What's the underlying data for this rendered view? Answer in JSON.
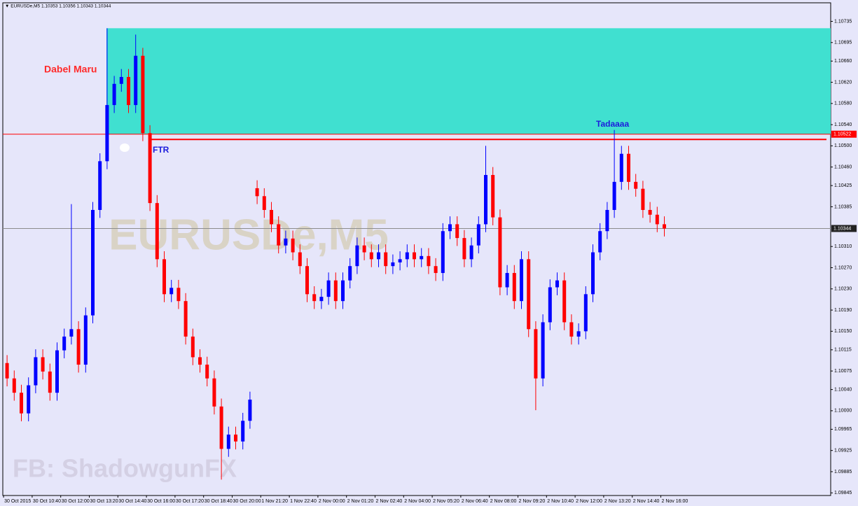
{
  "chart_data": {
    "type": "candlestick",
    "title": "▼ EURUSDe,M5  1.10353 1.10356 1.10343 1.10344",
    "watermark": "EURUSDe,M5",
    "credit": "FB: ShadowgunFX",
    "up_color": "#0000ff",
    "down_color": "#ff0000",
    "categories": [
      "30 Oct 2015",
      null,
      null,
      null,
      "30 Oct 10:40",
      null,
      null,
      null,
      "30 Oct 12:00",
      null,
      null,
      null,
      "30 Oct 13:20",
      null,
      null,
      null,
      "30 Oct 14:40",
      null,
      null,
      null,
      "30 Oct 16:00",
      null,
      null,
      null,
      "30 Oct 17:20",
      null,
      null,
      null,
      "30 Oct 18:40",
      null,
      null,
      null,
      "30 Oct 20:00",
      null,
      null,
      null,
      "1 Nov 21:20",
      null,
      null,
      null,
      "1 Nov 22:40",
      null,
      null,
      null,
      "2 Nov 00:00",
      null,
      null,
      null,
      "2 Nov 01:20",
      null,
      null,
      null,
      "2 Nov 02:40",
      null,
      null,
      null,
      "2 Nov 04:00",
      null,
      null,
      null,
      "2 Nov 05:20",
      null,
      null,
      null,
      "2 Nov 06:40",
      null,
      null,
      null,
      "2 Nov 08:00",
      null,
      null,
      null,
      "2 Nov 09:20",
      null,
      null,
      null,
      "2 Nov 10:40",
      null,
      null,
      null,
      "2 Nov 12:00",
      null,
      null,
      null,
      "2 Nov 13:20",
      null,
      null,
      null,
      "2 Nov 14:40",
      null,
      null,
      null,
      "2 Nov 16:00"
    ],
    "open": [
      1.1009,
      1.10061,
      1.10034,
      1.09995,
      1.10048,
      1.10101,
      1.10074,
      1.10034,
      1.10114,
      1.1014,
      1.10154,
      1.10087,
      1.1018,
      1.10379,
      1.10471,
      1.10577,
      1.10617,
      1.1063,
      1.10577,
      1.1067,
      1.10524,
      1.10392,
      1.10286,
      1.1022,
      1.10232,
      1.10207,
      1.1014,
      1.10101,
      1.10087,
      1.10061,
      1.10008,
      1.09928,
      1.09955,
      1.09942,
      1.09981,
      1.1042,
      1.10405,
      1.10379,
      1.10352,
      1.10312,
      1.10325,
      1.10299,
      1.10273,
      1.1022,
      1.10207,
      1.10215,
      1.10246,
      1.10207,
      1.10246,
      1.10273,
      1.10312,
      1.10299,
      1.10286,
      1.10299,
      1.10273,
      1.1028,
      1.10286,
      1.10299,
      1.10286,
      1.10292,
      1.10273,
      1.1026,
      1.10339,
      1.10352,
      1.10326,
      1.10286,
      1.10312,
      1.10352,
      1.10445,
      1.10365,
      1.10233,
      1.1026,
      1.10207,
      1.10286,
      1.10154,
      1.10061,
      1.10167,
      1.10233,
      1.10246,
      1.10167,
      1.1014,
      1.1015,
      1.1022,
      1.10299,
      1.10339,
      1.10379,
      1.10432,
      1.10485,
      1.10432,
      1.10419,
      1.10379,
      1.1037,
      1.10352
    ],
    "high": [
      1.10105,
      1.10076,
      1.10049,
      1.10063,
      1.10116,
      1.10116,
      1.10089,
      1.10129,
      1.10155,
      1.1039,
      1.10169,
      1.10195,
      1.10394,
      1.10486,
      1.10722,
      1.10632,
      1.10645,
      1.10645,
      1.1071,
      1.10685,
      1.10539,
      1.10407,
      1.10301,
      1.10247,
      1.10247,
      1.10222,
      1.10155,
      1.10116,
      1.10102,
      1.10076,
      1.10023,
      1.0997,
      1.0997,
      1.09996,
      1.10036,
      1.10435,
      1.1042,
      1.10394,
      1.10367,
      1.1034,
      1.1034,
      1.10314,
      1.10288,
      1.10235,
      1.1023,
      1.10261,
      1.10261,
      1.10261,
      1.10288,
      1.10327,
      1.10327,
      1.10314,
      1.10314,
      1.10314,
      1.10295,
      1.10301,
      1.10314,
      1.10314,
      1.10307,
      1.10307,
      1.10288,
      1.10354,
      1.10367,
      1.10367,
      1.10341,
      1.10327,
      1.10367,
      1.105,
      1.1046,
      1.1038,
      1.10275,
      1.10275,
      1.10301,
      1.10301,
      1.10169,
      1.10182,
      1.10248,
      1.10261,
      1.10261,
      1.10182,
      1.10165,
      1.10235,
      1.10314,
      1.10354,
      1.10394,
      1.1053,
      1.105,
      1.105,
      1.10447,
      1.10434,
      1.10394,
      1.10385,
      1.10367
    ],
    "low": [
      1.10046,
      1.10019,
      1.0998,
      1.0998,
      1.10033,
      1.10059,
      1.10019,
      1.10019,
      1.10099,
      1.10125,
      1.10072,
      1.10072,
      1.10165,
      1.10364,
      1.10456,
      1.10562,
      1.10602,
      1.10562,
      1.10562,
      1.10509,
      1.10377,
      1.10271,
      1.10205,
      1.10205,
      1.10192,
      1.10125,
      1.10086,
      1.10072,
      1.10046,
      1.09993,
      1.0987,
      1.09913,
      1.09927,
      1.09927,
      1.09966,
      1.1039,
      1.10364,
      1.10337,
      1.10297,
      1.10297,
      1.10284,
      1.10258,
      1.10205,
      1.10192,
      1.10192,
      1.102,
      1.10192,
      1.10192,
      1.10231,
      1.10258,
      1.10284,
      1.10271,
      1.10271,
      1.10258,
      1.10258,
      1.10265,
      1.10271,
      1.10271,
      1.10271,
      1.10258,
      1.10245,
      1.10245,
      1.10324,
      1.10311,
      1.10271,
      1.10271,
      1.10297,
      1.10337,
      1.1035,
      1.10218,
      1.10218,
      1.10192,
      1.10192,
      1.10139,
      1.10001,
      1.10046,
      1.10152,
      1.10218,
      1.10152,
      1.10125,
      1.10125,
      1.10135,
      1.10205,
      1.10284,
      1.10324,
      1.10364,
      1.10417,
      1.10417,
      1.10404,
      1.10364,
      1.10355,
      1.10337,
      1.10329
    ],
    "close": [
      1.10061,
      1.10034,
      1.09995,
      1.10048,
      1.10101,
      1.10074,
      1.10034,
      1.10114,
      1.1014,
      1.10154,
      1.10087,
      1.1018,
      1.10379,
      1.10471,
      1.10577,
      1.10617,
      1.1063,
      1.10577,
      1.1067,
      1.10524,
      1.10392,
      1.10286,
      1.1022,
      1.10232,
      1.10207,
      1.1014,
      1.10101,
      1.10087,
      1.10061,
      1.10008,
      1.09928,
      1.09955,
      1.09942,
      1.09981,
      1.10021,
      1.10405,
      1.10379,
      1.10352,
      1.10312,
      1.10325,
      1.10299,
      1.10273,
      1.1022,
      1.10207,
      1.10215,
      1.10246,
      1.10207,
      1.10246,
      1.10273,
      1.10312,
      1.10299,
      1.10286,
      1.10299,
      1.10273,
      1.1028,
      1.10286,
      1.10299,
      1.10286,
      1.10292,
      1.10273,
      1.1026,
      1.10339,
      1.10352,
      1.10326,
      1.10286,
      1.10312,
      1.10352,
      1.10445,
      1.10365,
      1.10233,
      1.1026,
      1.10207,
      1.10286,
      1.10154,
      1.10061,
      1.10167,
      1.10233,
      1.10246,
      1.10167,
      1.1014,
      1.1015,
      1.1022,
      1.10299,
      1.10339,
      1.10379,
      1.10432,
      1.10485,
      1.10432,
      1.10419,
      1.10379,
      1.1037,
      1.10352,
      1.10344
    ],
    "ylim": [
      1.0984,
      1.1077
    ],
    "yticks": [
      1.10735,
      1.10695,
      {
        "value": 1.1066,
        "label": "1.10660"
      },
      {
        "value": 1.1062,
        "label": "1.10620"
      },
      {
        "value": 1.1058,
        "label": "1.10580"
      },
      {
        "value": 1.1054,
        "label": "1.10540"
      },
      {
        "value": 1.105,
        "label": "1.10500"
      },
      {
        "value": 1.1046,
        "label": "1.10460"
      },
      1.10425,
      1.10385,
      {
        "value": 1.1031,
        "label": "1.10310"
      },
      {
        "value": 1.1027,
        "label": "1.10270"
      },
      {
        "value": 1.1023,
        "label": "1.10230"
      },
      {
        "value": 1.1019,
        "label": "1.10190"
      },
      {
        "value": 1.1015,
        "label": "1.10150"
      },
      1.10115,
      1.10075,
      {
        "value": 1.1004,
        "label": "1.10040"
      },
      {
        "value": 1.1,
        "label": "1.10000"
      },
      1.09965,
      1.09925,
      1.09885,
      1.09845
    ],
    "zone": {
      "low": 1.10522,
      "high": 1.10722,
      "color": "#40e0d0"
    },
    "price_lines": [
      {
        "value": 1.10522,
        "color": "#ff0000"
      },
      {
        "value": 1.10344,
        "color": "#8c8c8c"
      }
    ],
    "ftr_line": {
      "value": 1.10512,
      "color": "#ff0000"
    },
    "annotations": [
      {
        "text": "Dabel Maru",
        "color": "#ff2a2a"
      },
      {
        "text": "FTR",
        "color": "#1c1cdc"
      },
      {
        "text": "Tadaaaa",
        "color": "#1c1cdc"
      }
    ]
  }
}
